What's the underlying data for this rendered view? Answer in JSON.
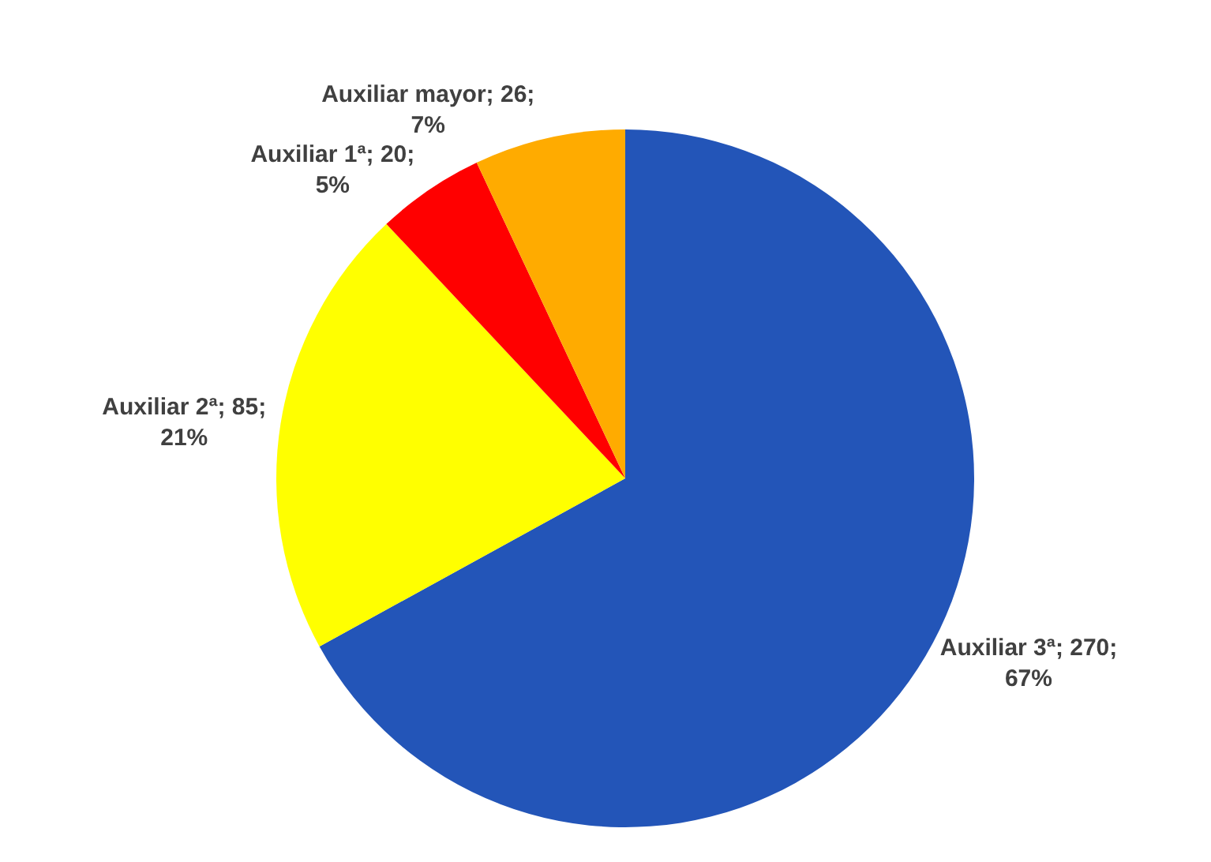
{
  "chart_data": {
    "type": "pie",
    "categories": [
      "Auxiliar 3ª",
      "Auxiliar 2ª",
      "Auxiliar 1ª",
      "Auxiliar mayor"
    ],
    "values": [
      67,
      21,
      5,
      7
    ],
    "colors": [
      "#2355b8",
      "#ffff00",
      "#ff0000",
      "#ffab00"
    ],
    "value_labels": [
      "270; 67%",
      "85; 21%",
      "20; 5%",
      "26; 7%"
    ],
    "legend": false
  }
}
